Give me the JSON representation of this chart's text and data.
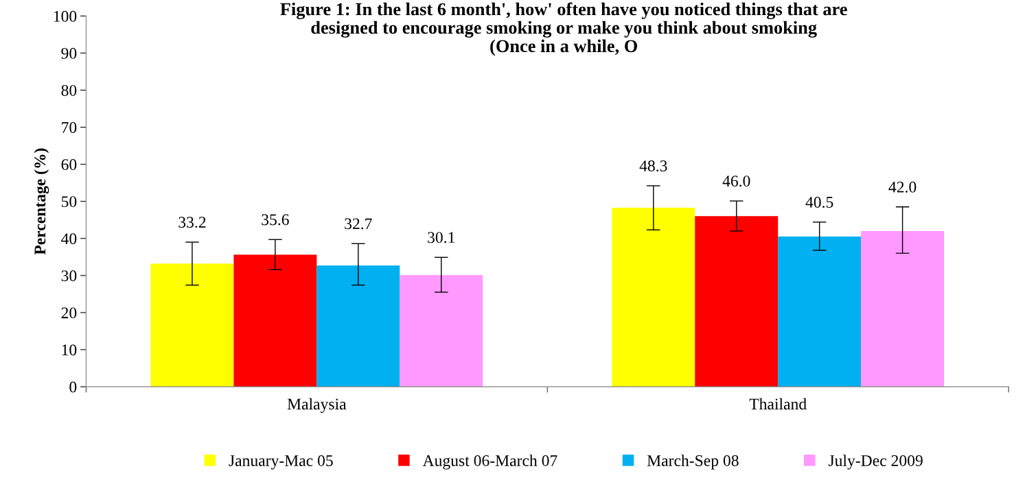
{
  "chart_data": {
    "type": "bar",
    "title": "Figure 1: In the last 6 month', how' often have you noticed things that are\ndesigned to encourage smoking or make you think about smoking\n(Once in a while, O",
    "ylabel": "Percentage (%)",
    "categories": [
      "Malaysia",
      "Thailand"
    ],
    "series": [
      {
        "name": "January-Mac 05",
        "color": "#ffff00",
        "values": [
          33.2,
          48.3
        ],
        "value_labels": [
          "33.2",
          "48.3"
        ],
        "errors": [
          [
            27.4,
            39.0
          ],
          [
            42.3,
            54.2
          ]
        ]
      },
      {
        "name": "August 06-March 07",
        "color": "#ff0000",
        "values": [
          35.6,
          46.0
        ],
        "value_labels": [
          "35.6",
          "46.0"
        ],
        "errors": [
          [
            31.6,
            39.7
          ],
          [
            42.0,
            50.1
          ]
        ]
      },
      {
        "name": "March-Sep 08",
        "color": "#00b0f0",
        "values": [
          32.7,
          40.5
        ],
        "value_labels": [
          "32.7",
          "40.5"
        ],
        "errors": [
          [
            27.4,
            38.6
          ],
          [
            36.8,
            44.4
          ]
        ]
      },
      {
        "name": "July-Dec 2009",
        "color": "#ff99ff",
        "values": [
          30.1,
          42.0
        ],
        "value_labels": [
          "30.1",
          "42.0"
        ],
        "errors": [
          [
            25.5,
            34.9
          ],
          [
            36.0,
            48.5
          ]
        ]
      }
    ],
    "ylim": [
      0,
      100
    ],
    "yticks": [
      0,
      10,
      20,
      30,
      40,
      50,
      60,
      70,
      80,
      90,
      100
    ],
    "grid": false,
    "legend": "bottom"
  }
}
